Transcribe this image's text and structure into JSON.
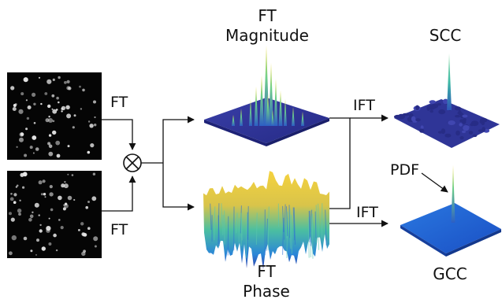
{
  "labels": {
    "ft_top": "FT",
    "ft_bottom": "FT",
    "ft_magnitude_line1": "FT",
    "ft_magnitude_line2": "Magnitude",
    "ft_phase_line1": "FT",
    "ft_phase_line2": "Phase",
    "ift_top": "IFT",
    "ift_bottom": "IFT",
    "scc": "SCC",
    "gcc": "GCC",
    "pdf": "PDF"
  },
  "icons": {
    "multiply": "circled-times-icon"
  },
  "colors": {
    "image_background": "#050505",
    "particle": "#e6e6e6",
    "magnitude_surface": "#2c2d8e",
    "magnitude_peak": "#f2e043",
    "phase_top": "#f0c93a",
    "phase_mid": "#3fb7a3",
    "phase_bottom": "#2b6fd6",
    "scc_surface": "#30369a",
    "scc_peak": "#46c3a8",
    "gcc_surface": "#1d62d6",
    "gcc_peak": "#45c1a0",
    "arrow": "#111111"
  }
}
